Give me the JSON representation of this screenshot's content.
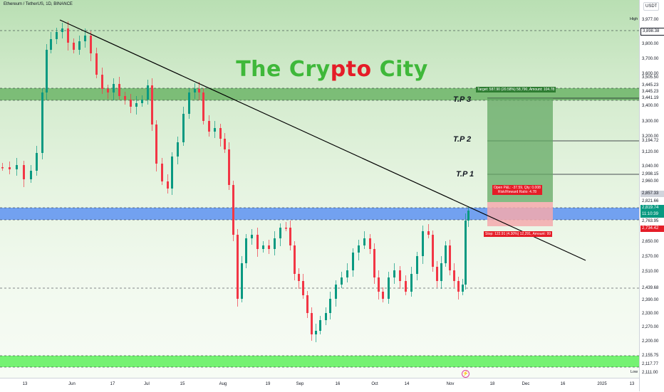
{
  "header": {
    "symbol": "Ethereum / TetherUS, 1D, BINANCE",
    "currency": "USDT"
  },
  "watermark": {
    "part1": "The Cry",
    "part2": "pto",
    "part3": " City"
  },
  "colors": {
    "up": "#089981",
    "down": "#f23645",
    "trendline": "#000000",
    "zone_green": "#5fad5a",
    "zone_blue": "#3f7ef5",
    "zone_lime": "#5ef05a",
    "target_fill": "#63a863",
    "stop_fill": "#f4a9ad"
  },
  "targets": [
    {
      "label": "T.P 3",
      "price": "3,441.19"
    },
    {
      "label": "T.P 2",
      "price": "3,194.72"
    },
    {
      "label": "T.P 1",
      "price": "2,998.15"
    }
  ],
  "position": {
    "target_text": "Target: 587.90 (20.58%) 58,790, Amount: 104.78",
    "info_line1": "Open P&L: -37.59, Qty: 0.008",
    "info_line2": "Risk/Reward Ratio: 4.78",
    "stop_text": "Stop: 122.91 (4.30%) 12,291, Amount: 99"
  },
  "price_axis": {
    "high_label": "High",
    "low_label": "Low",
    "ticks": [
      "3,977.00",
      "3,800.00",
      "3,700.00",
      "3,600.00",
      "3,400.00",
      "3,300.00",
      "3,200.00",
      "3,120.00",
      "3,040.00",
      "2,960.00",
      "2,650.00",
      "2,570.00",
      "2,510.00",
      "2,390.00",
      "2,330.00",
      "2,270.00",
      "2,200.00",
      "2,111.00"
    ],
    "levels": [
      {
        "price": "3,898.38",
        "style": "plain"
      },
      {
        "price": "3,505.50",
        "style": "plain"
      },
      {
        "price": "3,445.23",
        "style": "plain"
      },
      {
        "price": "3,445.23",
        "style": "plain"
      },
      {
        "price": "3,441.19",
        "style": "plain"
      },
      {
        "price": "3,194.72",
        "style": "plain"
      },
      {
        "price": "2,998.15",
        "style": "plain"
      },
      {
        "price": "2,857.33",
        "style": "gray"
      },
      {
        "price": "2,821.66",
        "style": "plain"
      },
      {
        "price": "2,819.74",
        "style": "green"
      },
      {
        "price": "11:10:39",
        "style": "green"
      },
      {
        "price": "2,763.95",
        "style": "plain"
      },
      {
        "price": "2,734.42",
        "style": "red"
      },
      {
        "price": "2,439.68",
        "style": "plain"
      },
      {
        "price": "2,155.75",
        "style": "plain"
      },
      {
        "price": "2,117.77",
        "style": "plain"
      }
    ]
  },
  "time_axis": [
    "13",
    "Jun",
    "17",
    "Jul",
    "15",
    "Aug",
    "19",
    "Sep",
    "16",
    "Oct",
    "14",
    "Nov",
    "18",
    "Dec",
    "16",
    "2025",
    "13"
  ]
}
